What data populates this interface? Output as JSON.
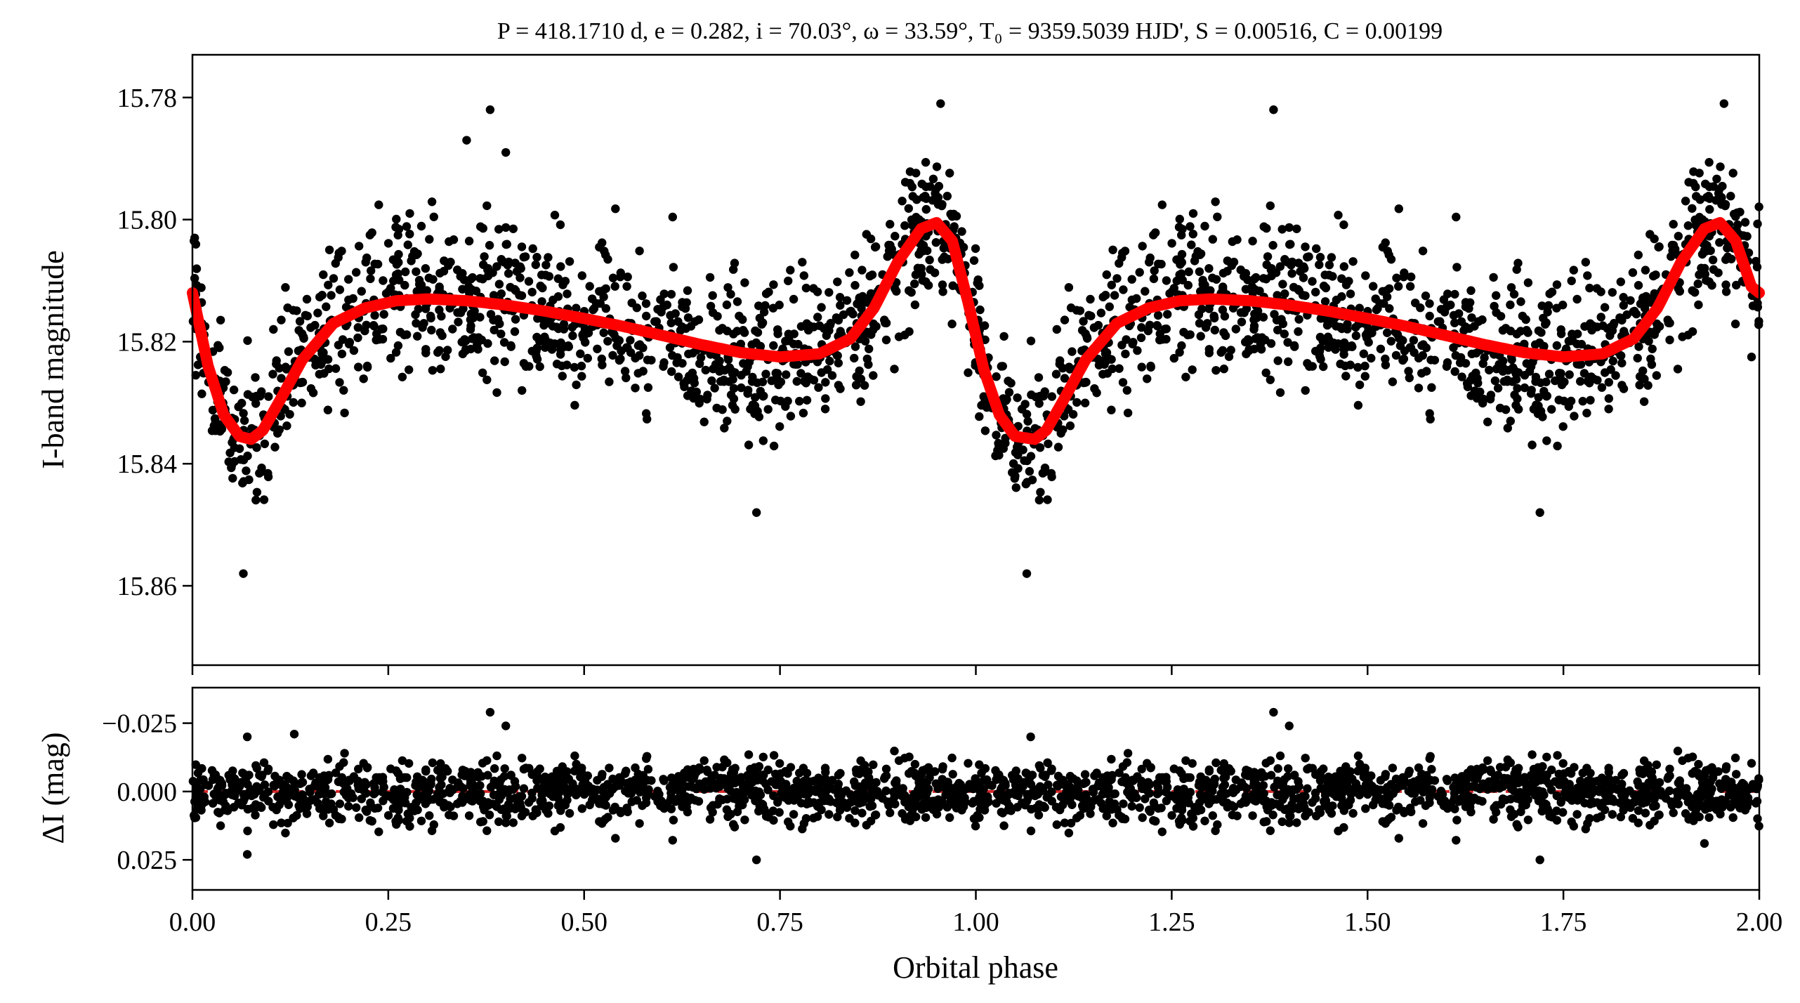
{
  "figure": {
    "title": "P = 418.1710 d, e = 0.282, i = 70.03°, ω = 33.59°, T₀ = 9359.5039 HJD', S = 0.00516, C = 0.00199"
  },
  "colors": {
    "points": "#000000",
    "model": "#ff0000",
    "zero_line": "#d62728",
    "axes": "#000000"
  },
  "chart_data": [
    {
      "type": "scatter",
      "panel": "top",
      "xlabel": "",
      "ylabel": "I-band magnitude",
      "xlim": [
        0.0,
        2.0
      ],
      "ylim": [
        15.873,
        15.773
      ],
      "y_inverted": true,
      "yticks": [
        15.78,
        15.8,
        15.82,
        15.84,
        15.86
      ],
      "ytick_labels": [
        "15.78",
        "15.80",
        "15.82",
        "15.84",
        "15.86"
      ],
      "xticks": [
        0.0,
        0.25,
        0.5,
        0.75,
        1.0,
        1.25,
        1.5,
        1.75,
        2.0
      ],
      "grid": false,
      "series": [
        {
          "kind": "points",
          "note_points": "phase-folded photometry repeated over phase 0–2",
          "outliers": [
            {
              "x": 0.065,
              "y": 15.858
            },
            {
              "x": 0.38,
              "y": 15.782
            },
            {
              "x": 0.35,
              "y": 15.787
            },
            {
              "x": 0.4,
              "y": 15.789
            },
            {
              "x": 0.72,
              "y": 15.848
            },
            {
              "x": 0.955,
              "y": 15.781
            },
            {
              "x": 1.065,
              "y": 15.858
            },
            {
              "x": 1.38,
              "y": 15.782
            },
            {
              "x": 1.72,
              "y": 15.848
            },
            {
              "x": 1.955,
              "y": 15.781
            }
          ]
        },
        {
          "kind": "model",
          "x": [
            0.0,
            0.02,
            0.04,
            0.06,
            0.075,
            0.09,
            0.11,
            0.14,
            0.18,
            0.22,
            0.26,
            0.3,
            0.35,
            0.4,
            0.45,
            0.5,
            0.55,
            0.6,
            0.65,
            0.7,
            0.75,
            0.8,
            0.84,
            0.87,
            0.9,
            0.93,
            0.95,
            0.97,
            0.99,
            1.01,
            1.03,
            1.05,
            1.075,
            1.09,
            1.11,
            1.14,
            1.18,
            1.22,
            1.26,
            1.3,
            1.35,
            1.4,
            1.45,
            1.5,
            1.55,
            1.6,
            1.65,
            1.7,
            1.75,
            1.8,
            1.84,
            1.87,
            1.9,
            1.93,
            1.95,
            1.97,
            1.99,
            2.0
          ],
          "y": [
            15.812,
            15.824,
            15.832,
            15.8355,
            15.836,
            15.8345,
            15.83,
            15.823,
            15.817,
            15.8145,
            15.8133,
            15.813,
            15.8133,
            15.814,
            15.815,
            15.8162,
            15.8175,
            15.819,
            15.8205,
            15.8218,
            15.8225,
            15.822,
            15.8195,
            15.8145,
            15.807,
            15.8015,
            15.8005,
            15.8035,
            15.8135,
            15.8245,
            15.832,
            15.8355,
            15.836,
            15.8345,
            15.83,
            15.823,
            15.817,
            15.8145,
            15.8133,
            15.813,
            15.8133,
            15.814,
            15.815,
            15.8162,
            15.8175,
            15.819,
            15.8205,
            15.8218,
            15.8225,
            15.822,
            15.8195,
            15.8145,
            15.807,
            15.8015,
            15.8005,
            15.8035,
            15.811,
            15.812
          ]
        }
      ]
    },
    {
      "type": "scatter",
      "panel": "bottom",
      "xlabel": "Orbital phase",
      "ylabel": "ΔI (mag)",
      "xlim": [
        0.0,
        2.0
      ],
      "ylim": [
        0.036,
        -0.038
      ],
      "y_inverted": true,
      "yticks": [
        -0.025,
        0.0,
        0.025
      ],
      "ytick_labels": [
        "−0.025",
        "0.000",
        "0.025"
      ],
      "xticks": [
        0.0,
        0.25,
        0.5,
        0.75,
        1.0,
        1.25,
        1.5,
        1.75,
        2.0
      ],
      "xtick_labels": [
        "0.00",
        "0.25",
        "0.50",
        "0.75",
        "1.00",
        "1.25",
        "1.50",
        "1.75",
        "2.00"
      ],
      "grid": false,
      "zero_line": 0.0,
      "series": [
        {
          "kind": "residuals",
          "outliers": [
            {
              "x": 0.07,
              "y": -0.02
            },
            {
              "x": 0.38,
              "y": -0.029
            },
            {
              "x": 0.13,
              "y": -0.021
            },
            {
              "x": 0.4,
              "y": -0.024
            },
            {
              "x": 0.07,
              "y": 0.023
            },
            {
              "x": 0.72,
              "y": 0.025
            },
            {
              "x": 1.07,
              "y": -0.02
            },
            {
              "x": 1.38,
              "y": -0.029
            },
            {
              "x": 1.4,
              "y": -0.024
            },
            {
              "x": 1.72,
              "y": 0.025
            },
            {
              "x": 1.93,
              "y": 0.019
            }
          ]
        }
      ]
    }
  ]
}
